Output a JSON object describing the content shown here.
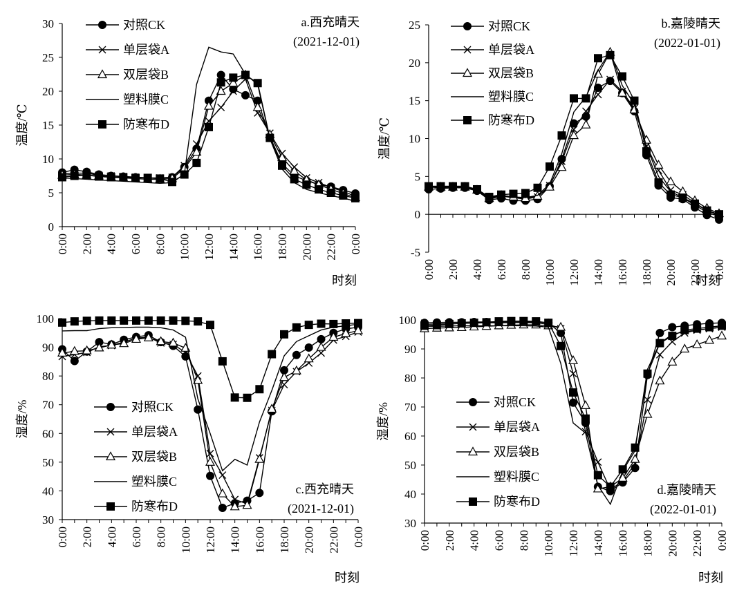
{
  "chart_data": [
    {
      "type": "line",
      "panel_label": "a.西充晴天",
      "panel_date": "(2021-12-01)",
      "xlabel": "时刻",
      "ylabel": "温度/℃",
      "ylim": [
        0,
        30
      ],
      "yticks": [
        "0",
        "5",
        "10",
        "15",
        "20",
        "25",
        "30"
      ],
      "xticks": [
        "0:00",
        "2:00",
        "4:00",
        "6:00",
        "8:00",
        "10:00",
        "12:00",
        "14:00",
        "16:00",
        "18:00",
        "20:00",
        "22:00",
        "0:00"
      ],
      "legend_position": "top-left",
      "x": [
        0,
        1,
        2,
        3,
        4,
        5,
        6,
        7,
        8,
        9,
        10,
        11,
        12,
        13,
        14,
        15,
        16,
        17,
        18,
        19,
        20,
        21,
        22,
        23,
        24
      ],
      "series": [
        {
          "name": "对照CK",
          "marker": "circle",
          "values": [
            8.0,
            8.4,
            8.1,
            7.7,
            7.5,
            7.4,
            7.3,
            7.2,
            7.1,
            7.3,
            8.8,
            11.5,
            18.6,
            22.4,
            20.3,
            19.4,
            18.6,
            13.3,
            9.3,
            7.5,
            6.8,
            6.2,
            5.9,
            5.4,
            4.9
          ]
        },
        {
          "name": "单层袋A",
          "marker": "cross",
          "values": [
            7.8,
            7.9,
            7.9,
            7.6,
            7.5,
            7.4,
            7.3,
            7.2,
            7.2,
            7.3,
            9.0,
            12.2,
            15.6,
            17.6,
            20.0,
            21.8,
            16.8,
            13.8,
            10.8,
            8.8,
            7.2,
            6.5,
            5.8,
            5.2,
            4.5
          ]
        },
        {
          "name": "双层袋B",
          "marker": "triangle",
          "values": [
            7.6,
            7.7,
            7.6,
            7.5,
            7.3,
            7.2,
            7.1,
            7.0,
            7.0,
            7.1,
            8.6,
            11.0,
            17.8,
            20.0,
            21.2,
            22.4,
            17.6,
            13.6,
            10.2,
            8.2,
            6.9,
            6.2,
            5.5,
            4.9,
            4.3
          ]
        },
        {
          "name": "塑料膜C",
          "marker": "none",
          "values": [
            7.2,
            7.1,
            7.0,
            6.9,
            6.8,
            6.7,
            6.6,
            6.5,
            6.4,
            6.5,
            7.8,
            21.0,
            26.5,
            25.8,
            25.5,
            22.5,
            21.0,
            13.0,
            8.5,
            6.5,
            5.5,
            5.0,
            4.6,
            4.2,
            3.8
          ]
        },
        {
          "name": "防寒布D",
          "marker": "square",
          "values": [
            7.3,
            7.5,
            7.6,
            7.4,
            7.3,
            7.3,
            7.2,
            7.2,
            7.1,
            6.6,
            7.7,
            9.4,
            14.7,
            21.3,
            22.0,
            22.4,
            21.2,
            13.1,
            9.0,
            7.0,
            6.2,
            5.5,
            5.0,
            4.6,
            4.2
          ]
        }
      ]
    },
    {
      "type": "line",
      "panel_label": "b.嘉陵晴天",
      "panel_date": "(2022-01-01)",
      "xlabel": "时刻",
      "ylabel": "温度/℃",
      "ylim": [
        -5,
        25
      ],
      "yticks": [
        "-5",
        "0",
        "5",
        "10",
        "15",
        "20",
        "25"
      ],
      "xticks": [
        "0:00",
        "2:00",
        "4:00",
        "6:00",
        "8:00",
        "10:00",
        "12:00",
        "14:00",
        "16:00",
        "18:00",
        "20:00",
        "22:00",
        "0:00"
      ],
      "legend_position": "top-left",
      "x": [
        0,
        1,
        2,
        3,
        4,
        5,
        6,
        7,
        8,
        9,
        10,
        11,
        12,
        13,
        14,
        15,
        16,
        17,
        18,
        19,
        20,
        21,
        22,
        23,
        24
      ],
      "series": [
        {
          "name": "对照CK",
          "marker": "circle",
          "values": [
            3.3,
            3.4,
            3.5,
            3.5,
            3.1,
            1.9,
            2.1,
            1.8,
            1.8,
            2.0,
            3.7,
            7.3,
            12.0,
            12.9,
            16.7,
            17.6,
            16.0,
            13.6,
            7.8,
            3.8,
            2.2,
            2.0,
            0.9,
            -0.1,
            -0.7
          ]
        },
        {
          "name": "单层袋A",
          "marker": "cross",
          "values": [
            3.6,
            3.5,
            3.6,
            3.6,
            3.2,
            2.0,
            2.4,
            2.2,
            2.0,
            2.3,
            3.8,
            7.0,
            11.2,
            13.6,
            15.8,
            17.8,
            16.2,
            14.0,
            9.0,
            5.8,
            3.2,
            2.6,
            1.5,
            0.5,
            -0.1
          ]
        },
        {
          "name": "双层袋B",
          "marker": "triangle",
          "values": [
            3.6,
            3.6,
            3.6,
            3.6,
            3.2,
            2.1,
            2.5,
            2.3,
            2.1,
            2.4,
            3.6,
            6.2,
            10.4,
            11.8,
            18.5,
            21.4,
            16.0,
            13.8,
            9.8,
            6.5,
            4.3,
            3.0,
            1.8,
            0.8,
            0.1
          ]
        },
        {
          "name": "塑料膜C",
          "marker": "none",
          "values": [
            3.7,
            3.7,
            3.7,
            3.7,
            3.3,
            2.2,
            2.5,
            2.3,
            2.2,
            2.5,
            4.0,
            8.0,
            13.5,
            15.5,
            19.0,
            21.5,
            17.0,
            14.5,
            9.0,
            5.0,
            3.0,
            2.2,
            1.2,
            0.3,
            -0.3
          ]
        },
        {
          "name": "防寒布D",
          "marker": "square",
          "values": [
            3.7,
            3.7,
            3.7,
            3.7,
            3.3,
            2.3,
            2.6,
            2.7,
            2.8,
            3.5,
            6.3,
            10.4,
            15.3,
            15.3,
            20.6,
            21.0,
            18.2,
            15.0,
            8.3,
            4.2,
            2.6,
            2.2,
            1.4,
            0.5,
            0.0
          ]
        }
      ]
    },
    {
      "type": "line",
      "panel_label": "c.西充晴天",
      "panel_date": "(2021-12-01)",
      "xlabel": "时刻",
      "ylabel": "湿度/%",
      "ylim": [
        30,
        100
      ],
      "yticks": [
        "30",
        "40",
        "50",
        "60",
        "70",
        "80",
        "90",
        "100"
      ],
      "xticks": [
        "0:00",
        "2:00",
        "4:00",
        "6:00",
        "8:00",
        "10:00",
        "12:00",
        "14:00",
        "16:00",
        "18:00",
        "20:00",
        "22:00",
        "0:00"
      ],
      "legend_position": "bottom-left",
      "x": [
        0,
        1,
        2,
        3,
        4,
        5,
        6,
        7,
        8,
        9,
        10,
        11,
        12,
        13,
        14,
        15,
        16,
        17,
        18,
        19,
        20,
        21,
        22,
        23,
        24
      ],
      "series": [
        {
          "name": "对照CK",
          "marker": "circle",
          "values": [
            89.3,
            85.2,
            88.5,
            91.8,
            91.0,
            92.6,
            93.6,
            94.2,
            91.8,
            90.5,
            86.8,
            68.3,
            45.2,
            34.1,
            35.7,
            36.6,
            39.3,
            67.7,
            82.0,
            87.3,
            89.9,
            92.8,
            95.0,
            96.4,
            97.0
          ]
        },
        {
          "name": "单层袋A",
          "marker": "cross",
          "values": [
            86.8,
            87.5,
            88.2,
            90.2,
            90.6,
            91.8,
            93.2,
            93.5,
            91.5,
            91.0,
            88.2,
            80.0,
            53.0,
            45.5,
            37.0,
            35.5,
            51.5,
            68.0,
            77.0,
            81.5,
            84.5,
            88.0,
            92.5,
            93.8,
            95.3
          ]
        },
        {
          "name": "双层袋B",
          "marker": "triangle",
          "values": [
            88.0,
            88.6,
            88.8,
            89.8,
            90.8,
            91.3,
            92.8,
            93.3,
            92.0,
            91.5,
            89.7,
            78.5,
            50.0,
            39.0,
            34.5,
            35.0,
            51.0,
            68.5,
            79.5,
            81.8,
            86.0,
            90.0,
            93.5,
            94.8,
            95.8
          ]
        },
        {
          "name": "塑料膜C",
          "marker": "none",
          "values": [
            95.7,
            95.8,
            95.8,
            96.5,
            96.8,
            96.9,
            97.0,
            97.0,
            96.8,
            96.0,
            93.5,
            72.0,
            60.0,
            47.0,
            51.0,
            49.0,
            64.0,
            75.0,
            87.0,
            92.0,
            94.0,
            96.0,
            97.0,
            97.5,
            98.0
          ]
        },
        {
          "name": "防寒布D",
          "marker": "square",
          "values": [
            98.6,
            99.0,
            99.2,
            99.3,
            99.3,
            99.3,
            99.3,
            99.3,
            99.3,
            99.3,
            99.2,
            99.0,
            97.8,
            85.1,
            72.5,
            72.4,
            75.4,
            87.6,
            94.5,
            96.9,
            97.8,
            98.2,
            98.1,
            98.3,
            98.4
          ]
        }
      ]
    },
    {
      "type": "line",
      "panel_label": "d.嘉陵晴天",
      "panel_date": "(2022-01-01)",
      "xlabel": "时刻",
      "ylabel": "湿度/%",
      "ylim": [
        30,
        100
      ],
      "yticks": [
        "30",
        "40",
        "50",
        "60",
        "70",
        "80",
        "90",
        "100"
      ],
      "xticks": [
        "0:00",
        "2:00",
        "4:00",
        "6:00",
        "8:00",
        "10:00",
        "12:00",
        "14:00",
        "16:00",
        "18:00",
        "20:00",
        "22:00",
        "0:00"
      ],
      "legend_position": "bottom-left",
      "x": [
        0,
        1,
        2,
        3,
        4,
        5,
        6,
        7,
        8,
        9,
        10,
        11,
        12,
        13,
        14,
        15,
        16,
        17,
        18,
        19,
        20,
        21,
        22,
        23,
        24
      ],
      "series": [
        {
          "name": "对照CK",
          "marker": "circle",
          "values": [
            99.0,
            99.1,
            99.2,
            99.2,
            99.3,
            99.3,
            99.3,
            99.3,
            99.3,
            99.3,
            99.0,
            95.5,
            71.5,
            64.5,
            42.5,
            41.0,
            44.0,
            49.0,
            81.0,
            95.5,
            97.5,
            98.0,
            98.5,
            98.8,
            99.0
          ]
        },
        {
          "name": "单层袋A",
          "marker": "cross",
          "values": [
            98.5,
            98.6,
            98.7,
            98.8,
            98.9,
            99.0,
            99.0,
            99.1,
            99.1,
            99.0,
            98.5,
            97.0,
            81.5,
            61.5,
            51.0,
            41.5,
            44.5,
            50.5,
            72.5,
            88.0,
            92.5,
            95.5,
            96.5,
            97.0,
            97.5
          ]
        },
        {
          "name": "双层袋B",
          "marker": "triangle",
          "values": [
            97.0,
            97.2,
            97.3,
            97.4,
            97.6,
            97.8,
            98.0,
            98.2,
            98.3,
            98.3,
            98.0,
            97.5,
            86.0,
            70.5,
            41.8,
            42.5,
            45.5,
            52.0,
            67.5,
            79.0,
            85.5,
            90.0,
            91.5,
            93.0,
            94.5
          ]
        },
        {
          "name": "塑料膜C",
          "marker": "none",
          "values": [
            97.8,
            97.8,
            97.9,
            98.0,
            98.0,
            98.0,
            98.0,
            98.0,
            98.0,
            97.9,
            97.5,
            85.0,
            64.5,
            61.0,
            43.0,
            36.5,
            48.0,
            55.0,
            83.0,
            92.0,
            95.0,
            96.0,
            96.5,
            97.0,
            97.5
          ]
        },
        {
          "name": "防寒布D",
          "marker": "square",
          "values": [
            98.0,
            98.2,
            98.6,
            98.8,
            99.0,
            99.2,
            99.5,
            99.6,
            99.6,
            99.5,
            99.0,
            91.0,
            75.0,
            66.0,
            46.5,
            42.5,
            48.5,
            56.0,
            81.5,
            92.0,
            94.5,
            96.5,
            97.0,
            97.5,
            98.0
          ]
        }
      ]
    }
  ]
}
